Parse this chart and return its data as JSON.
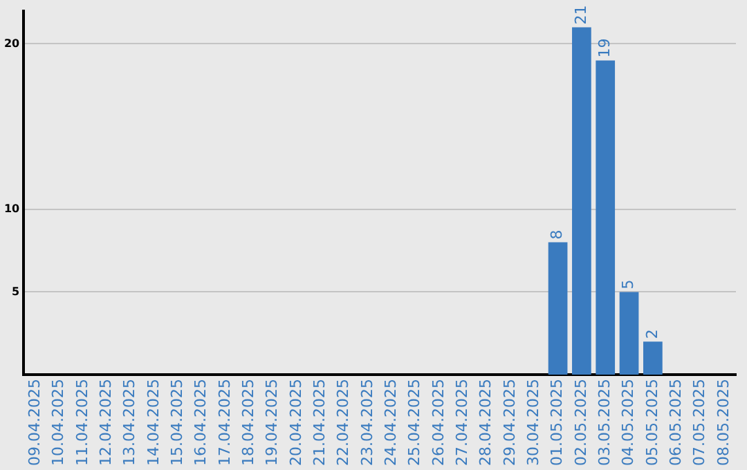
{
  "chart_data": {
    "type": "bar",
    "categories": [
      "09.04.2025",
      "10.04.2025",
      "11.04.2025",
      "12.04.2025",
      "13.04.2025",
      "14.04.2025",
      "15.04.2025",
      "16.04.2025",
      "17.04.2025",
      "18.04.2025",
      "19.04.2025",
      "20.04.2025",
      "21.04.2025",
      "22.04.2025",
      "23.04.2025",
      "24.04.2025",
      "25.04.2025",
      "26.04.2025",
      "27.04.2025",
      "28.04.2025",
      "29.04.2025",
      "30.04.2025",
      "01.05.2025",
      "02.05.2025",
      "03.05.2025",
      "04.05.2025",
      "05.05.2025",
      "06.05.2025",
      "07.05.2025",
      "08.05.2025"
    ],
    "values": [
      0,
      0,
      0,
      0,
      0,
      0,
      0,
      0,
      0,
      0,
      0,
      0,
      0,
      0,
      0,
      0,
      0,
      0,
      0,
      0,
      0,
      0,
      8,
      21,
      19,
      5,
      2,
      0,
      0,
      0
    ],
    "value_labels": [
      null,
      null,
      null,
      null,
      null,
      null,
      null,
      null,
      null,
      null,
      null,
      null,
      null,
      null,
      null,
      null,
      null,
      null,
      null,
      null,
      null,
      null,
      "8",
      "21",
      "19",
      "5",
      "2",
      null,
      null,
      null
    ],
    "color": "#3a7bbf",
    "ylim": [
      0,
      22
    ],
    "yticks": [
      5,
      10,
      20
    ],
    "grid": "y",
    "legend": false
  }
}
